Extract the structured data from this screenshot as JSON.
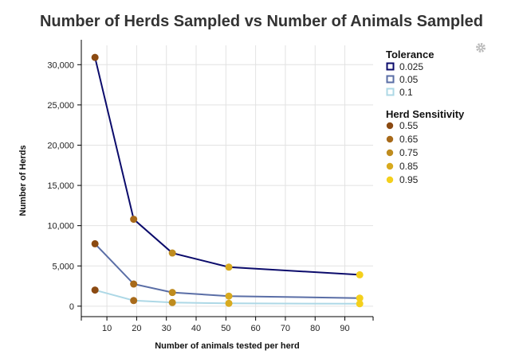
{
  "chart_data": {
    "type": "line",
    "title": "Number of Herds Sampled vs Number of Animals Sampled",
    "xlabel": "Number of animals tested per herd",
    "ylabel": "Number of Herds",
    "xlim": [
      1.4,
      99.5
    ],
    "ylim": [
      -1300,
      32400
    ],
    "x_ticks": [
      10,
      20,
      30,
      40,
      50,
      60,
      70,
      80,
      90
    ],
    "y_ticks": [
      0,
      5000,
      10000,
      15000,
      20000,
      25000,
      30000
    ],
    "y_tick_labels": [
      "0",
      "5,000",
      "10,000",
      "15,000",
      "20,000",
      "25,000",
      "30,000"
    ],
    "grid": true,
    "legend_position": "right",
    "x": [
      6,
      19,
      32,
      51,
      95
    ],
    "point_herd_sensitivity": [
      "0.55",
      "0.65",
      "0.75",
      "0.85",
      "0.95"
    ],
    "series": [
      {
        "name": "0.025",
        "color": "#0b0b6b",
        "values": [
          30900,
          10800,
          6600,
          4850,
          3900
        ]
      },
      {
        "name": "0.05",
        "color": "#5a6ea6",
        "values": [
          7750,
          2750,
          1700,
          1250,
          1000
        ]
      },
      {
        "name": "0.1",
        "color": "#add8e6",
        "values": [
          2000,
          700,
          450,
          350,
          300
        ]
      }
    ],
    "legend_tolerance_title": "Tolerance",
    "legend_sensitivity_title": "Herd Sensitivity",
    "sensitivity_levels": [
      {
        "name": "0.55",
        "color": "#8b4a12"
      },
      {
        "name": "0.65",
        "color": "#a86a1a"
      },
      {
        "name": "0.75",
        "color": "#bf8c1f"
      },
      {
        "name": "0.85",
        "color": "#d8aa1e"
      },
      {
        "name": "0.95",
        "color": "#f4d01c"
      }
    ]
  },
  "toolbar": {
    "settings_icon": "gear-icon"
  }
}
